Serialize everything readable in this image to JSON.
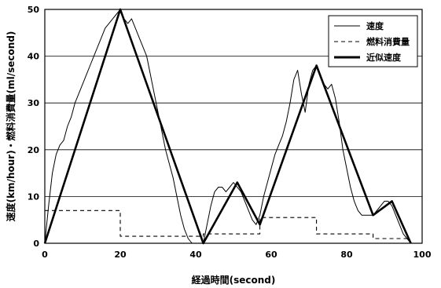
{
  "chart_data": {
    "type": "line",
    "xlabel": "経過時間(second)",
    "ylabel": "速度(km/hour)・燃料消費量(ml/second)",
    "xlim": [
      0,
      100
    ],
    "ylim": [
      0,
      50
    ],
    "x_ticks": [
      0,
      20,
      40,
      60,
      80,
      100
    ],
    "y_ticks": [
      0,
      10,
      20,
      30,
      40,
      50
    ],
    "grid": "horizontal",
    "legend_position": "top-right",
    "series": [
      {
        "name": "速度",
        "style": "thin-solid",
        "x": [
          0,
          1,
          2,
          3,
          4,
          5,
          6,
          7,
          8,
          9,
          10,
          11,
          12,
          13,
          14,
          15,
          16,
          17,
          18,
          19,
          20,
          21,
          22,
          23,
          24,
          25,
          26,
          27,
          28,
          29,
          30,
          31,
          32,
          33,
          34,
          35,
          36,
          37,
          38,
          39,
          40,
          41,
          42,
          43,
          44,
          45,
          46,
          47,
          48,
          49,
          50,
          51,
          52,
          53,
          54,
          55,
          56,
          57,
          58,
          59,
          60,
          61,
          62,
          63,
          64,
          65,
          66,
          67,
          68,
          69,
          70,
          71,
          72,
          73,
          74,
          75,
          76,
          77,
          78,
          79,
          80,
          81,
          82,
          83,
          84,
          85,
          86,
          87,
          88,
          89,
          90,
          91,
          92,
          93,
          94,
          95,
          96,
          97
        ],
        "y": [
          0,
          8,
          15,
          19,
          21,
          22,
          25,
          27,
          30,
          32,
          34,
          36,
          38,
          40,
          42,
          44,
          46,
          47,
          48,
          49,
          50,
          48,
          47,
          48,
          46,
          44,
          42,
          40,
          36,
          32,
          28,
          24,
          20,
          17,
          14,
          10,
          6,
          3,
          1,
          0,
          0,
          0,
          0,
          4,
          8,
          11,
          12,
          12,
          11,
          12,
          13,
          12,
          11,
          9,
          7,
          5,
          4,
          6,
          10,
          13,
          16,
          19,
          21,
          23,
          26,
          30,
          35,
          37,
          32,
          28,
          34,
          37,
          38,
          36,
          34,
          33,
          34,
          31,
          26,
          20,
          16,
          12,
          9,
          7,
          6,
          6,
          6,
          6,
          7,
          8,
          9,
          9,
          8,
          6,
          4,
          2,
          1,
          0
        ]
      },
      {
        "name": "燃料消費量",
        "style": "dashed",
        "x": [
          0,
          20,
          20,
          42,
          42,
          57,
          57,
          72,
          72,
          87,
          87,
          97
        ],
        "y": [
          7,
          7,
          1.5,
          1.5,
          2,
          2,
          5.5,
          5.5,
          2,
          2,
          1,
          1
        ]
      },
      {
        "name": "近似速度",
        "style": "thick-solid",
        "x": [
          0,
          20,
          42,
          51,
          57,
          72,
          87,
          92,
          97
        ],
        "y": [
          0,
          50,
          0,
          13,
          4,
          38,
          6,
          9,
          0
        ]
      }
    ]
  }
}
